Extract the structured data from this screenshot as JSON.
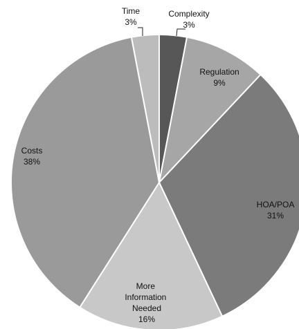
{
  "chart_data": {
    "type": "pie",
    "title": "",
    "slices": [
      {
        "label": "Complexity",
        "value": 3,
        "display": "3%",
        "color": "#575757"
      },
      {
        "label": "Regulation",
        "value": 9,
        "display": "9%",
        "color": "#a6a6a6"
      },
      {
        "label": "HOA/POA",
        "value": 31,
        "display": "31%",
        "color": "#7b7b7b"
      },
      {
        "label": "More Information Needed",
        "value": 16,
        "display": "16%",
        "color": "#c8c8c8"
      },
      {
        "label": "Costs",
        "value": 38,
        "display": "38%",
        "color": "#9a9a9a"
      },
      {
        "label": "Time",
        "value": 3,
        "display": "3%",
        "color": "#bcbcbc"
      }
    ],
    "legend": "none",
    "start_angle": "12 o'clock",
    "direction": "clockwise"
  }
}
